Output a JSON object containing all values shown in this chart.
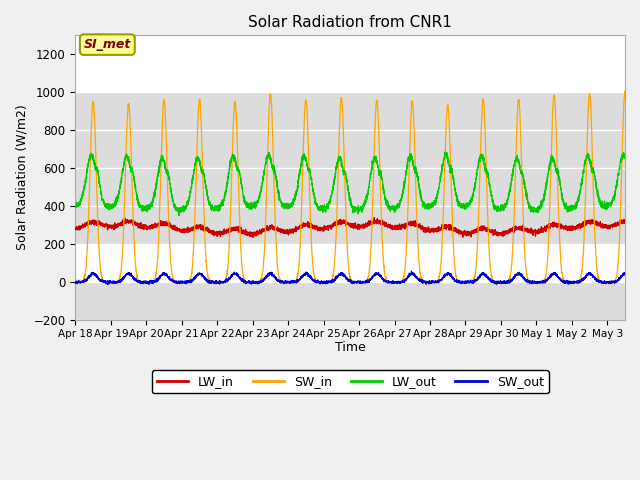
{
  "title": "Solar Radiation from CNR1",
  "xlabel": "Time",
  "ylabel": "Solar Radiation (W/m2)",
  "ylim": [
    -200,
    1300
  ],
  "yticks": [
    -200,
    0,
    200,
    400,
    600,
    800,
    1000,
    1200
  ],
  "outer_bg": "#f0f0f0",
  "plot_bg": "#ffffff",
  "band_color": "#dcdcdc",
  "grid_color": "#ffffff",
  "line_colors": {
    "LW_in": "#cc0000",
    "SW_in": "#ffa500",
    "LW_out": "#00cc00",
    "SW_out": "#0000cc"
  },
  "annotation_text": "SI_met",
  "annotation_color": "#800000",
  "annotation_bg": "#ffff99",
  "annotation_border": "#999900",
  "tick_labels": [
    "Apr 18",
    "Apr 19",
    "Apr 20",
    "Apr 21",
    "Apr 22",
    "Apr 23",
    "Apr 24",
    "Apr 25",
    "Apr 26",
    "Apr 27",
    "Apr 28",
    "Apr 29",
    "Apr 30",
    "May 1",
    "May 2",
    "May 3"
  ],
  "num_days": 15.5,
  "points_per_day": 288
}
